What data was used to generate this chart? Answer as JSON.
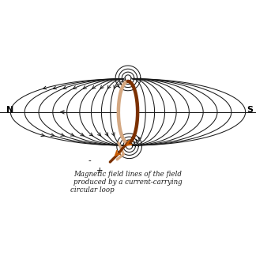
{
  "bg_color": "#ffffff",
  "loop_dark_color": "#7B3000",
  "loop_light_color": "#D4A882",
  "field_line_color": "#1a1a1a",
  "orange_arrow_color": "#C85A00",
  "label_N": "N",
  "label_S": "S",
  "label_minus": "-",
  "label_plus": "+",
  "caption_line1": "Magnetic field lines of the field",
  "caption_line2": "produced by a current-carrying",
  "caption_line3": "circular loop",
  "caption_color": "#1a1a1a",
  "figsize": [
    3.24,
    3.29
  ],
  "dpi": 100
}
